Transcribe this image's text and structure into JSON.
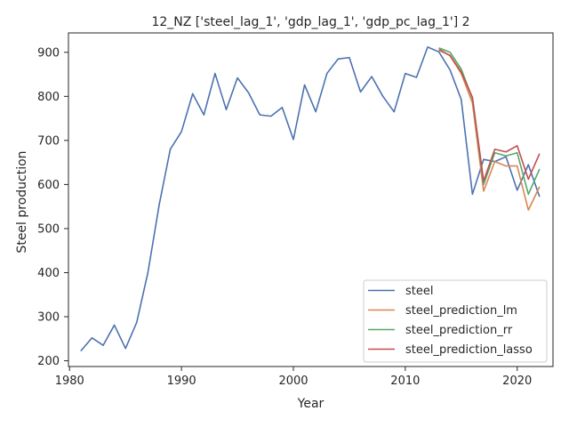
{
  "chart_data": {
    "type": "line",
    "title": "12_NZ ['steel_lag_1', 'gdp_lag_1', 'gdp_pc_lag_1'] 2",
    "xlabel": "Year",
    "ylabel": "Steel production",
    "xlim": [
      1979.9,
      2023.2
    ],
    "ylim": [
      187,
      944
    ],
    "xticks": [
      1980,
      1990,
      2000,
      2010,
      2020
    ],
    "yticks": [
      200,
      300,
      400,
      500,
      600,
      700,
      800,
      900
    ],
    "grid": false,
    "legend_position": "lower right",
    "series": [
      {
        "name": "steel",
        "color": "#4c72b0",
        "x": [
          1981,
          1982,
          1983,
          1984,
          1985,
          1986,
          1987,
          1988,
          1989,
          1990,
          1991,
          1992,
          1993,
          1994,
          1995,
          1996,
          1997,
          1998,
          1999,
          2000,
          2001,
          2002,
          2003,
          2004,
          2005,
          2006,
          2007,
          2008,
          2009,
          2010,
          2011,
          2012,
          2013,
          2014,
          2015,
          2016,
          2017,
          2018,
          2019,
          2020,
          2021,
          2022
        ],
        "y": [
          222,
          252,
          235,
          281,
          228,
          287,
          400,
          553,
          680,
          720,
          806,
          758,
          852,
          770,
          842,
          808,
          758,
          755,
          775,
          702,
          826,
          765,
          852,
          885,
          888,
          810,
          845,
          800,
          765,
          852,
          843,
          912,
          901,
          860,
          793,
          578,
          657,
          652,
          663,
          587,
          645,
          572
        ]
      },
      {
        "name": "steel_prediction_lm",
        "color": "#dd8452",
        "x": [
          2013,
          2014,
          2015,
          2016,
          2017,
          2018,
          2019,
          2020,
          2021,
          2022
        ],
        "y": [
          908,
          892,
          852,
          785,
          585,
          652,
          642,
          642,
          542,
          595
        ]
      },
      {
        "name": "steel_prediction_rr",
        "color": "#55a868",
        "x": [
          2013,
          2014,
          2015,
          2016,
          2017,
          2018,
          2019,
          2020,
          2021,
          2022
        ],
        "y": [
          910,
          900,
          862,
          795,
          600,
          672,
          665,
          672,
          578,
          635
        ]
      },
      {
        "name": "steel_prediction_lasso",
        "color": "#c44e52",
        "x": [
          2013,
          2014,
          2015,
          2016,
          2017,
          2018,
          2019,
          2020,
          2021,
          2022
        ],
        "y": [
          905,
          893,
          855,
          798,
          608,
          680,
          674,
          688,
          612,
          670
        ]
      }
    ]
  }
}
